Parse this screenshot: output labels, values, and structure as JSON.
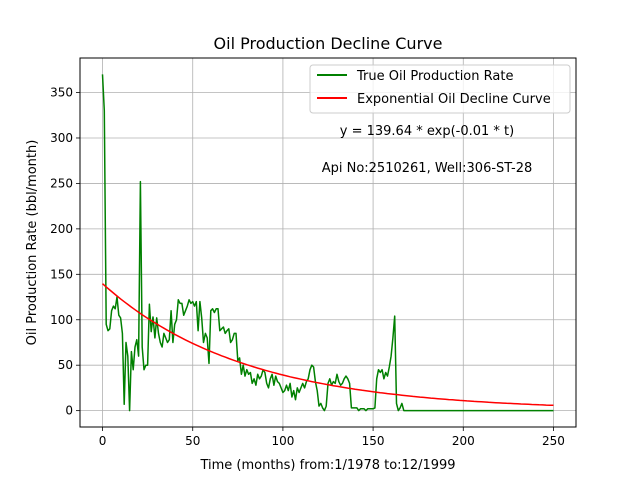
{
  "chart_data": {
    "type": "line",
    "title": "Oil Production Decline Curve",
    "xlabel": "Time (months) from:1/1978 to:12/1999",
    "ylabel": "Oil Production Rate (bbl/month)",
    "xlim": [
      -12.5,
      262.5
    ],
    "ylim": [
      -18,
      388
    ],
    "xticks": [
      0,
      50,
      100,
      150,
      200,
      250
    ],
    "yticks": [
      0,
      50,
      100,
      150,
      200,
      250,
      300,
      350
    ],
    "grid": true,
    "legend_position": "top-right",
    "annotations": [
      "y = 139.64 * exp(-0.01 * t)",
      "Api No:2510261, Well:306-ST-28"
    ],
    "series": [
      {
        "name": "True Oil Production Rate",
        "color": "#008000",
        "x": [
          0,
          1,
          2,
          3,
          4,
          5,
          6,
          7,
          8,
          9,
          10,
          11,
          12,
          13,
          14,
          15,
          16,
          17,
          18,
          19,
          20,
          21,
          22,
          23,
          24,
          25,
          26,
          27,
          28,
          29,
          30,
          31,
          32,
          33,
          34,
          35,
          36,
          37,
          38,
          39,
          40,
          41,
          42,
          43,
          44,
          45,
          46,
          47,
          48,
          49,
          50,
          51,
          52,
          53,
          54,
          55,
          56,
          57,
          58,
          59,
          60,
          61,
          62,
          63,
          64,
          65,
          66,
          67,
          68,
          69,
          70,
          71,
          72,
          73,
          74,
          75,
          76,
          77,
          78,
          79,
          80,
          81,
          82,
          83,
          84,
          85,
          86,
          87,
          88,
          89,
          90,
          91,
          92,
          93,
          94,
          95,
          96,
          97,
          98,
          99,
          100,
          101,
          102,
          103,
          104,
          105,
          106,
          107,
          108,
          109,
          110,
          111,
          112,
          113,
          114,
          115,
          116,
          117,
          118,
          119,
          120,
          121,
          122,
          123,
          124,
          125,
          126,
          127,
          128,
          129,
          130,
          131,
          132,
          133,
          134,
          135,
          136,
          137,
          138,
          139,
          140,
          141,
          142,
          143,
          144,
          145,
          146,
          147,
          148,
          149,
          150,
          151,
          152,
          153,
          154,
          155,
          156,
          157,
          158,
          159,
          160,
          161,
          162,
          163,
          164,
          165,
          166,
          167,
          168,
          169,
          170,
          250
        ],
        "y": [
          370,
          330,
          95,
          88,
          90,
          110,
          115,
          112,
          125,
          105,
          102,
          85,
          7,
          75,
          60,
          0,
          65,
          45,
          70,
          78,
          60,
          252,
          70,
          45,
          50,
          50,
          117,
          87,
          103,
          80,
          102,
          85,
          75,
          70,
          85,
          80,
          75,
          78,
          110,
          75,
          95,
          100,
          122,
          118,
          118,
          105,
          110,
          115,
          122,
          118,
          120,
          115,
          120,
          88,
          120,
          102,
          75,
          85,
          80,
          52,
          110,
          112,
          108,
          112,
          112,
          88,
          90,
          92,
          85,
          88,
          90,
          75,
          78,
          85,
          85,
          55,
          58,
          40,
          50,
          38,
          45,
          40,
          42,
          30,
          35,
          28,
          40,
          35,
          38,
          45,
          42,
          30,
          25,
          35,
          40,
          28,
          38,
          32,
          30,
          25,
          20,
          22,
          28,
          22,
          30,
          15,
          22,
          12,
          25,
          20,
          25,
          30,
          25,
          32,
          35,
          45,
          50,
          48,
          32,
          22,
          5,
          8,
          3,
          0,
          5,
          30,
          35,
          28,
          32,
          30,
          40,
          32,
          28,
          30,
          35,
          38,
          35,
          30,
          3,
          3,
          3,
          3,
          0,
          2,
          2,
          2,
          0,
          2,
          2,
          2,
          2,
          3,
          35,
          45,
          42,
          45,
          35,
          42,
          38,
          48,
          60,
          80,
          104,
          8,
          0,
          3,
          8,
          0,
          0,
          0,
          0,
          0
        ]
      },
      {
        "name": "Exponential Oil Decline Curve",
        "color": "#ff0000",
        "a": 139.64,
        "b": 0.0127,
        "x_range": [
          0,
          250
        ]
      }
    ]
  }
}
